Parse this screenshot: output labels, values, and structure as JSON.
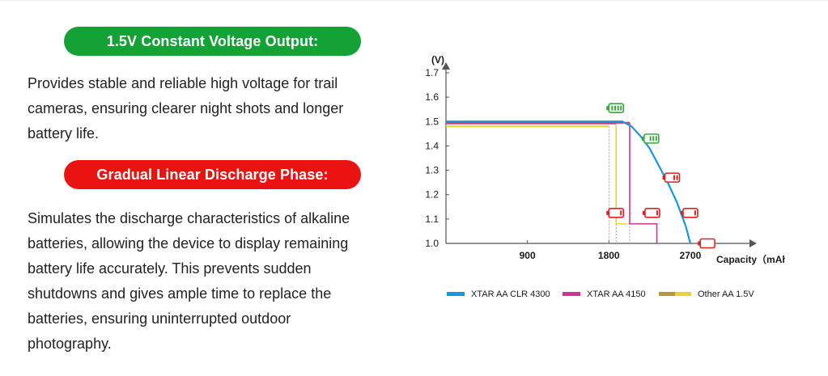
{
  "section1": {
    "heading": "1.5V Constant Voltage Output:",
    "heading_color": "#14a236",
    "lines": [
      "Provides stable and reliable high voltage for trail",
      "cameras, ensuring clearer night shots and longer",
      "battery life."
    ]
  },
  "section2": {
    "heading": "Gradual Linear Discharge Phase:",
    "heading_color": "#ea1312",
    "lines": [
      "Simulates the discharge characteristics of alkaline",
      "batteries, allowing the device to display remaining",
      "battery life accurately. This prevents sudden",
      "shutdowns and gives ample time to replace the",
      "batteries, ensuring uninterrupted outdoor",
      "photography."
    ]
  },
  "chart_data": {
    "type": "line",
    "title": "",
    "ylabel": "(V)",
    "xlabel": "Capacity（mAh)",
    "xlim": [
      0,
      3300
    ],
    "ylim": [
      1.0,
      1.7
    ],
    "x_ticks": [
      "900",
      "1800",
      "2700"
    ],
    "y_ticks": [
      "1.0",
      "1.1",
      "1.2",
      "1.3",
      "1.4",
      "1.5",
      "1.6",
      "1.7"
    ],
    "grid": false,
    "legend_position": "bottom",
    "series": [
      {
        "name": "XTAR AA CLR 4300",
        "color": "#1a96dc",
        "x": [
          0,
          1950,
          2050,
          2150,
          2250,
          2350,
          2450,
          2550,
          2650,
          2700
        ],
        "y": [
          1.5,
          1.5,
          1.48,
          1.44,
          1.39,
          1.32,
          1.25,
          1.17,
          1.07,
          1.0
        ]
      },
      {
        "name": "XTAR AA 4150",
        "color": "#d6318f",
        "x": [
          0,
          2030
        ],
        "y": [
          1.495,
          1.495
        ],
        "drop_to": [
          [
            2030,
            1.08
          ],
          [
            2330,
            1.08
          ],
          [
            2330,
            1.0
          ]
        ]
      },
      {
        "name": "Other AA 1.5V",
        "color": "#ecd22a",
        "color2": "#b09a40",
        "x": [
          0,
          1800
        ],
        "y": [
          1.48,
          1.48
        ],
        "x2": [
          0,
          1880
        ],
        "y2": [
          1.49,
          1.49
        ],
        "drop_to": [
          [
            1880,
            1.08
          ],
          [
            2000,
            1.08
          ]
        ]
      }
    ],
    "battery_markers": [
      {
        "x": 1880,
        "y": 1.555,
        "state": "full",
        "color": "#3aa83a"
      },
      {
        "x": 2270,
        "y": 1.43,
        "state": "high",
        "color": "#3aa83a"
      },
      {
        "x": 2500,
        "y": 1.27,
        "state": "half",
        "color": "#e02020"
      },
      {
        "x": 1880,
        "y": 1.125,
        "state": "low",
        "color": "#e02020"
      },
      {
        "x": 2280,
        "y": 1.125,
        "state": "low",
        "color": "#e02020"
      },
      {
        "x": 2700,
        "y": 1.125,
        "state": "low",
        "color": "#e02020"
      },
      {
        "x": 2890,
        "y": 1.0,
        "state": "empty",
        "color": "#e02020"
      }
    ]
  }
}
